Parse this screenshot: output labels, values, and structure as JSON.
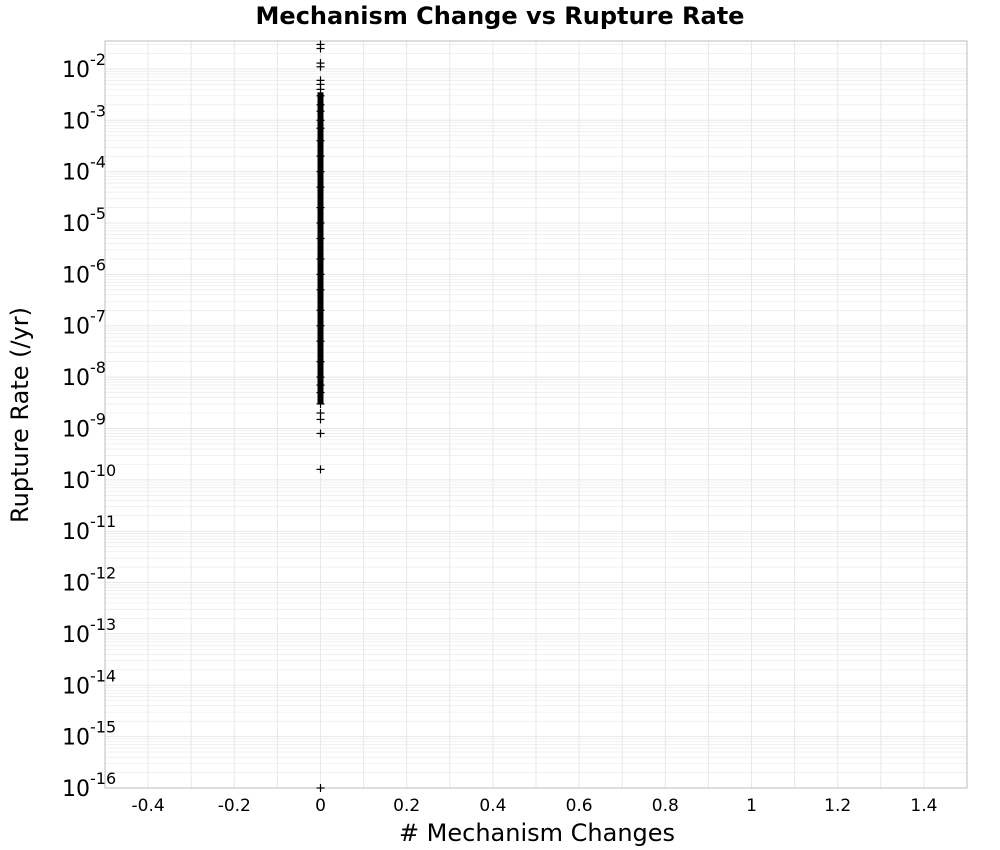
{
  "colors": {
    "grid": "#e8e8e8",
    "frame": "#bdbdbd",
    "marker": "#000000"
  },
  "chart_data": {
    "type": "scatter",
    "title": "Mechanism Change vs Rupture Rate",
    "xlabel": "# Mechanism Changes",
    "ylabel": "Rupture Rate (/yr)",
    "xlim": [
      -0.5,
      1.5
    ],
    "ylim": [
      1e-16,
      0.035
    ],
    "yscale": "log",
    "grid": true,
    "legend": "none",
    "marker": "plus",
    "x_ticks": [
      "-0.4",
      "-0.2",
      "0",
      "0.2",
      "0.4",
      "0.6",
      "0.8",
      "1",
      "1.2",
      "1.4"
    ],
    "y_ticks": [
      {
        "base": "10",
        "exp": "-2"
      },
      {
        "base": "10",
        "exp": "-3"
      },
      {
        "base": "10",
        "exp": "-4"
      },
      {
        "base": "10",
        "exp": "-5"
      },
      {
        "base": "10",
        "exp": "-6"
      },
      {
        "base": "10",
        "exp": "-7"
      },
      {
        "base": "10",
        "exp": "-8"
      },
      {
        "base": "10",
        "exp": "-9"
      },
      {
        "base": "10",
        "exp": "-10"
      },
      {
        "base": "10",
        "exp": "-11"
      },
      {
        "base": "10",
        "exp": "-12"
      },
      {
        "base": "10",
        "exp": "-13"
      },
      {
        "base": "10",
        "exp": "-14"
      },
      {
        "base": "10",
        "exp": "-15"
      },
      {
        "base": "10",
        "exp": "-16"
      }
    ],
    "points": [
      {
        "x": 0,
        "y": 0.03
      },
      {
        "x": 0,
        "y": 0.025
      },
      {
        "x": 0,
        "y": 0.013
      },
      {
        "x": 0,
        "y": 0.011
      },
      {
        "x": 0,
        "y": 0.006
      },
      {
        "x": 0,
        "y": 0.005
      },
      {
        "x": 0,
        "y": 0.004
      },
      {
        "x": 0,
        "y": 0.003
      },
      {
        "x": 0,
        "y": 0.002
      },
      {
        "x": 0,
        "y": 0.0015
      },
      {
        "x": 0,
        "y": 0.001
      },
      {
        "x": 0,
        "y": 0.0007
      },
      {
        "x": 0,
        "y": 0.0004
      },
      {
        "x": 0,
        "y": 0.0002
      },
      {
        "x": 0,
        "y": 0.0001
      },
      {
        "x": 0,
        "y": 5e-05
      },
      {
        "x": 0,
        "y": 2e-05
      },
      {
        "x": 0,
        "y": 1e-05
      },
      {
        "x": 0,
        "y": 5e-06
      },
      {
        "x": 0,
        "y": 2e-06
      },
      {
        "x": 0,
        "y": 1e-06
      },
      {
        "x": 0,
        "y": 5e-07
      },
      {
        "x": 0,
        "y": 2e-07
      },
      {
        "x": 0,
        "y": 1e-07
      },
      {
        "x": 0,
        "y": 5e-08
      },
      {
        "x": 0,
        "y": 2e-08
      },
      {
        "x": 0,
        "y": 1e-08
      },
      {
        "x": 0,
        "y": 7e-09
      },
      {
        "x": 0,
        "y": 5e-09
      },
      {
        "x": 0,
        "y": 3e-09
      },
      {
        "x": 0,
        "y": 2e-09
      },
      {
        "x": 0,
        "y": 1.5e-09
      },
      {
        "x": 0,
        "y": 8e-10
      },
      {
        "x": 0,
        "y": 1.6e-10
      },
      {
        "x": 0,
        "y": 1e-16
      }
    ]
  }
}
